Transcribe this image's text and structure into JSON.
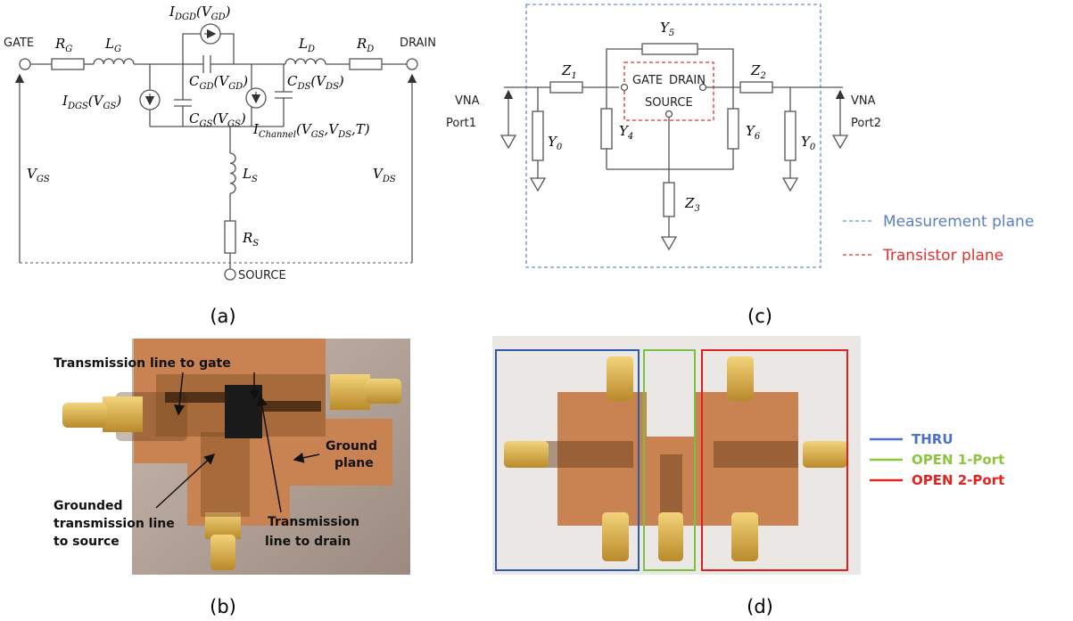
{
  "panel_a": {
    "caption": "(a)",
    "gate": "GATE",
    "drain": "DRAIN",
    "source": "SOURCE",
    "rg": [
      "R",
      "G"
    ],
    "lg": [
      "L",
      "G"
    ],
    "idgd": [
      "I",
      "DGD",
      "(V",
      "GD",
      ")"
    ],
    "cgd": [
      "C",
      "GD",
      "(V",
      "GD",
      ")"
    ],
    "ld": [
      "L",
      "D"
    ],
    "rd": [
      "R",
      "D"
    ],
    "idgs": [
      "I",
      "DGS",
      "(V",
      "GS",
      ")"
    ],
    "cgs": [
      "C",
      "GS",
      "(V",
      "GS",
      ")"
    ],
    "cds": [
      "C",
      "DS",
      "(V",
      "DS",
      ")"
    ],
    "ich": [
      "I",
      "Channel",
      "(V",
      "GS",
      ",V",
      "DS",
      ",T)"
    ],
    "vgs": [
      "V",
      "GS"
    ],
    "vds": [
      "V",
      "DS"
    ],
    "ls": [
      "L",
      "S"
    ],
    "rs": [
      "R",
      "S"
    ]
  },
  "panel_c": {
    "caption": "(c)",
    "y5": [
      "Y",
      "5"
    ],
    "z1": [
      "Z",
      "1"
    ],
    "z2": [
      "Z",
      "2"
    ],
    "gate": "GATE",
    "drain": "DRAIN",
    "source": "SOURCE",
    "port1": [
      "VNA",
      "Port1"
    ],
    "port2": [
      "VNA",
      "Port2"
    ],
    "y0_left": [
      "Y",
      "0"
    ],
    "y4": [
      "Y",
      "4"
    ],
    "y6": [
      "Y",
      "6"
    ],
    "y0_right": [
      "Y",
      "0"
    ],
    "z3": [
      "Z",
      "3"
    ],
    "legend": [
      "Measurement plane",
      "Transistor plane"
    ]
  },
  "panel_b": {
    "caption": "(b)",
    "gate_line": "Transmission line to gate",
    "ground_plane": [
      "Ground",
      "plane"
    ],
    "source_line": [
      "Grounded",
      "transmission line",
      "to source"
    ],
    "drain_line": [
      "Transmission",
      "line to drain"
    ]
  },
  "panel_d": {
    "caption": "(d)",
    "legend": [
      "THRU",
      "OPEN 1-Port",
      "OPEN 2-Port"
    ]
  }
}
